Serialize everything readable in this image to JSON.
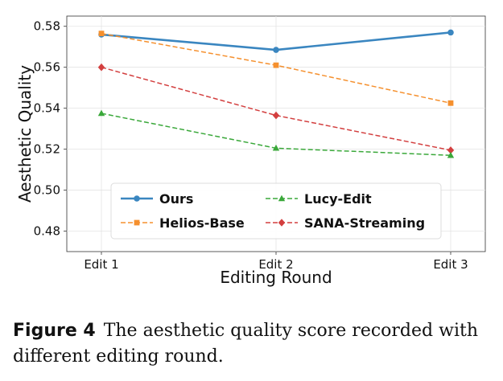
{
  "chart_data": {
    "type": "line",
    "categories": [
      "Edit 1",
      "Edit 2",
      "Edit 3"
    ],
    "xlabel": "Editing Round",
    "ylabel": "Aesthetic Quality",
    "ylim": [
      0.47,
      0.585
    ],
    "yticks": [
      "0.48",
      "0.50",
      "0.52",
      "0.54",
      "0.56",
      "0.58"
    ],
    "grid": true,
    "legend_position": "lower-center",
    "series": [
      {
        "name": "Ours",
        "values": [
          0.576,
          0.5685,
          0.577
        ],
        "color": "#3a86c0",
        "marker": "circle",
        "style": "solid"
      },
      {
        "name": "Helios-Base",
        "values": [
          0.5765,
          0.561,
          0.5425
        ],
        "color": "#f5902e",
        "marker": "square",
        "style": "dashed"
      },
      {
        "name": "SANA-Streaming",
        "values": [
          0.56,
          0.5365,
          0.5195
        ],
        "color": "#d33f3f",
        "marker": "diamond",
        "style": "dashed"
      },
      {
        "name": "Lucy-Edit",
        "values": [
          0.5375,
          0.5205,
          0.517
        ],
        "color": "#3aa83a",
        "marker": "triangle",
        "style": "dashed"
      }
    ],
    "legend_order": [
      "Ours",
      "Lucy-Edit",
      "Helios-Base",
      "SANA-Streaming"
    ]
  },
  "caption": {
    "label": "Figure 4",
    "text": "The aesthetic quality score recorded with different editing round."
  }
}
